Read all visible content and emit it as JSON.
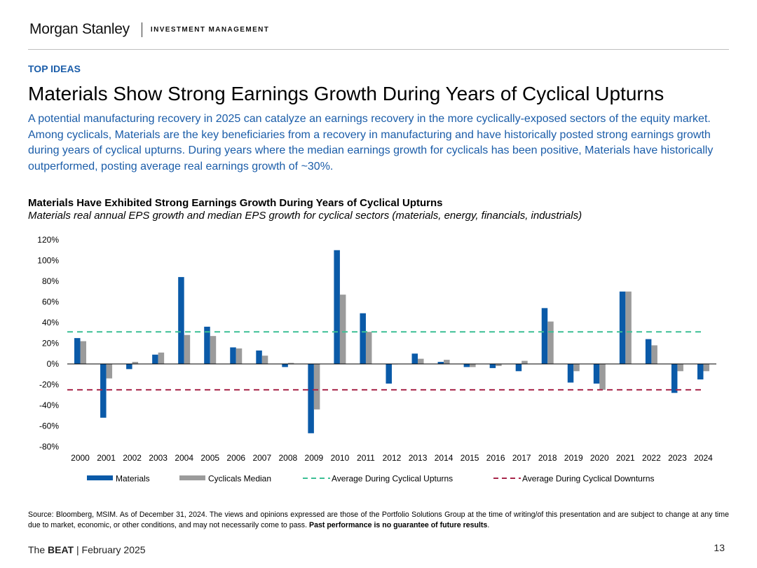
{
  "header": {
    "brand": "Morgan Stanley",
    "division": "INVESTMENT MANAGEMENT",
    "section": "TOP IDEAS",
    "title": "Materials Show Strong Earnings Growth During Years of Cyclical Upturns",
    "lead": "A potential manufacturing recovery in 2025 can catalyze an earnings recovery in the more cyclically-exposed sectors of the equity market. Among cyclicals, Materials are the key beneficiaries from a recovery in manufacturing and have historically posted strong earnings growth during years of cyclical upturns. During years where the median earnings growth for cyclicals has been positive, Materials have historically outperformed, posting average real earnings growth of ~30%."
  },
  "chart_data": {
    "type": "bar",
    "title": "Materials Have Exhibited Strong Earnings Growth During Years of Cyclical Upturns",
    "subtitle": "Materials real annual EPS growth and median EPS growth for cyclical sectors (materials, energy, financials, industrials)",
    "categories": [
      "2000",
      "2001",
      "2002",
      "2003",
      "2004",
      "2005",
      "2006",
      "2007",
      "2008",
      "2009",
      "2010",
      "2011",
      "2012",
      "2013",
      "2014",
      "2015",
      "2016",
      "2017",
      "2018",
      "2019",
      "2020",
      "2021",
      "2022",
      "2023",
      "2024"
    ],
    "series": [
      {
        "name": "Materials",
        "color": "#0a5aa8",
        "values": [
          25,
          -52,
          -5,
          9,
          84,
          36,
          16,
          13,
          -3,
          -67,
          110,
          49,
          -19,
          10,
          2,
          -3,
          -4,
          -7,
          54,
          -18,
          -19,
          70,
          24,
          -28,
          -15
        ]
      },
      {
        "name": "Cyclicals Median",
        "color": "#9b9b9b",
        "values": [
          22,
          -14,
          2,
          11,
          28,
          27,
          15,
          8,
          1,
          -44,
          67,
          31,
          0,
          5,
          4,
          -3,
          -2,
          3,
          41,
          -7,
          -25,
          70,
          18,
          -7,
          -7
        ]
      }
    ],
    "reference_lines": [
      {
        "name": "Average During Cyclical Upturns",
        "value": 31,
        "color": "#3dbf95",
        "style": "dashed"
      },
      {
        "name": "Average During Cyclical Downturns",
        "value": -25,
        "color": "#a8264a",
        "style": "dashed"
      }
    ],
    "y_ticks": [
      "120%",
      "100%",
      "80%",
      "60%",
      "40%",
      "20%",
      "0%",
      "-20%",
      "-40%",
      "-60%",
      "-80%"
    ],
    "ylim": [
      -80,
      120
    ],
    "xlabel": "",
    "ylabel": "",
    "legend_position": "bottom"
  },
  "footer": {
    "source": "Source: Bloomberg, MSIM. As of December 31, 2024. The views and opinions expressed are those of the Portfolio Solutions Group at the time of writing/of this presentation and are subject to change at any time due to market, economic, or other conditions, and may not necessarily come to pass.",
    "disclaimer_bold": "Past performance is no guarantee of future results",
    "brand_prefix": "The",
    "brand_bold": "BEAT",
    "date": "| February 2025",
    "page_number": "13"
  }
}
